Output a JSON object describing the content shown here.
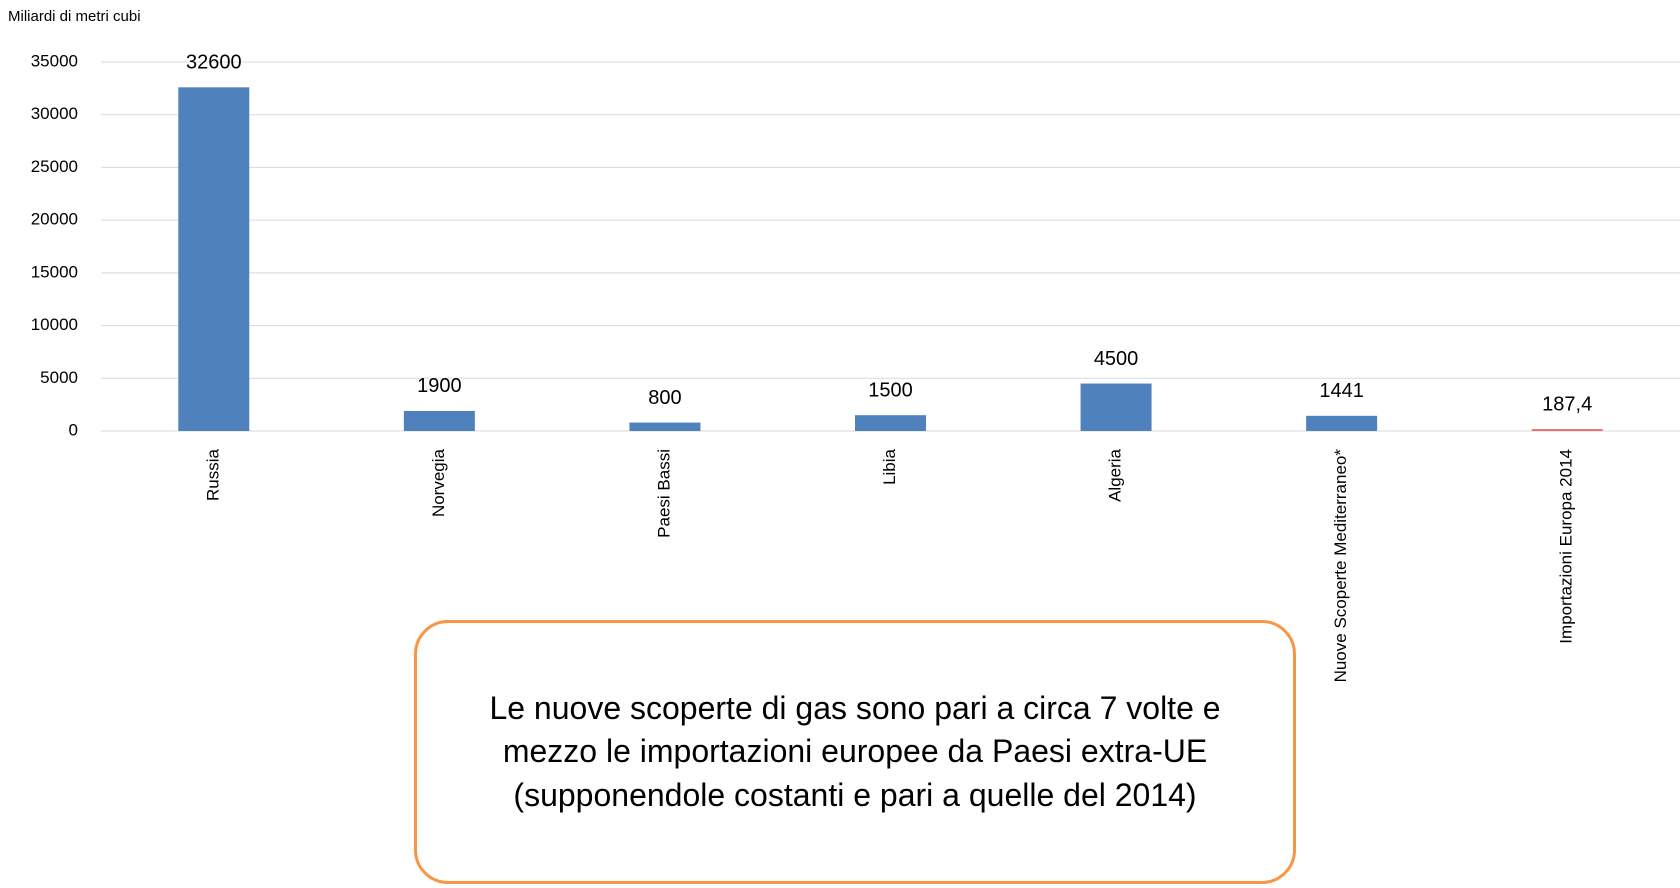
{
  "chart_data": {
    "type": "bar",
    "y_axis_label": "Miliardi di metri cubi",
    "categories": [
      "Russia",
      "Norvegia",
      "Paesi Bassi",
      "Libia",
      "Algeria",
      "Nuove Scoperte Mediterraneo*",
      "Importazioni Europa 2014"
    ],
    "values": [
      32600,
      1900,
      800,
      1500,
      4500,
      1441,
      187.4
    ],
    "value_labels": [
      "32600",
      "1900",
      "800",
      "1500",
      "4500",
      "1441",
      "187,4"
    ],
    "colors": [
      "#4f81bd",
      "#4f81bd",
      "#4f81bd",
      "#4f81bd",
      "#4f81bd",
      "#4f81bd",
      "#e8746a"
    ],
    "ylim": [
      0,
      35000
    ],
    "yticks": [
      0,
      5000,
      10000,
      15000,
      20000,
      25000,
      30000,
      35000
    ],
    "grid": true,
    "annotation": "Le nuove scoperte di gas sono pari a circa 7 volte e mezzo le importazioni europee da Paesi extra-UE (supponendole costanti e pari a quelle del 2014)"
  }
}
